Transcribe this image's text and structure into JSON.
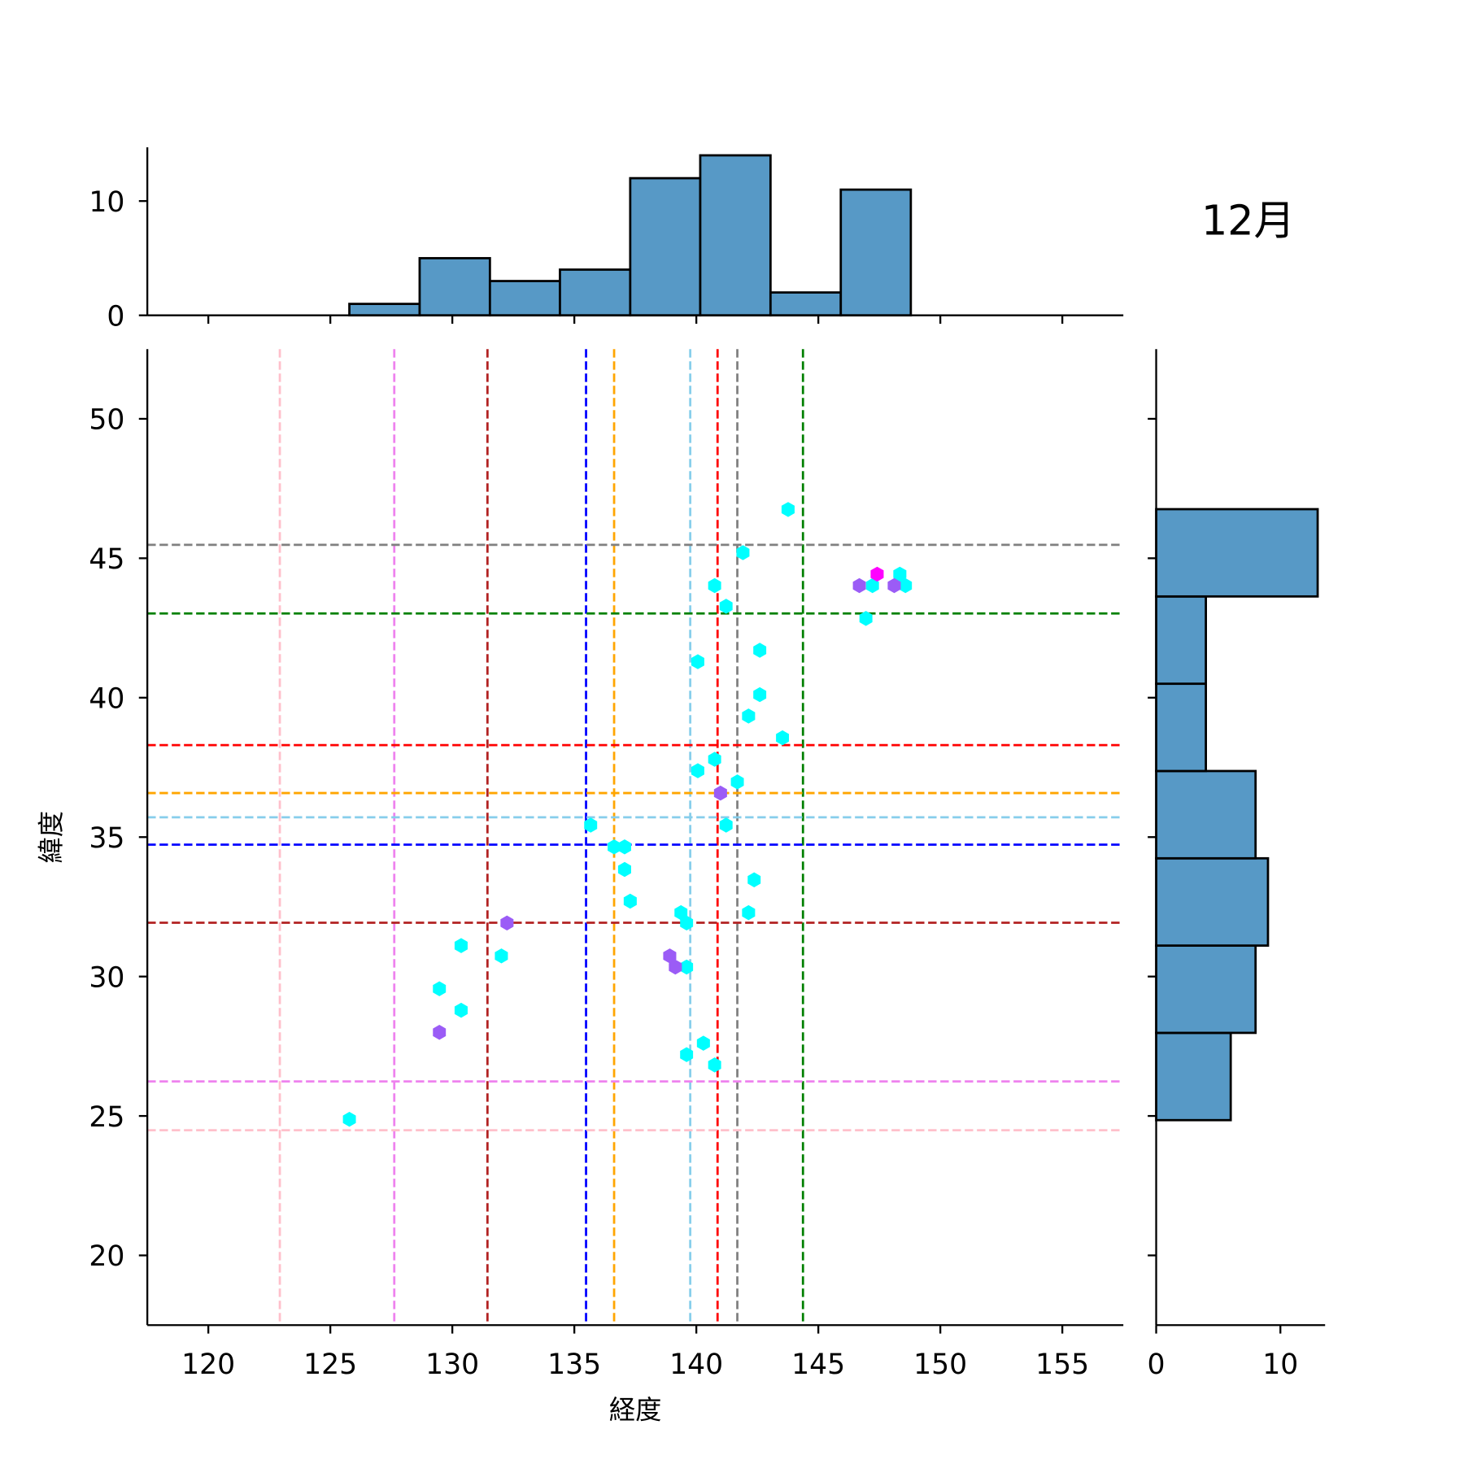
{
  "chart_data": {
    "type": "scatter",
    "title": "12月",
    "xlabel": "経度",
    "ylabel": "緯度",
    "xlim": [
      117.5,
      157.5
    ],
    "ylim": [
      17.5,
      52.5
    ],
    "xticks": [
      120,
      125,
      130,
      135,
      140,
      145,
      150,
      155
    ],
    "yticks": [
      20,
      25,
      30,
      35,
      40,
      45,
      50
    ],
    "grid": false,
    "colors": {
      "bar": "#5799c6",
      "cyan": "#00ffff",
      "purple": "#9b5cf6",
      "magenta": "#ff00ff"
    },
    "vlines": [
      {
        "x": 122.93,
        "color": "#ffc0cb"
      },
      {
        "x": 127.62,
        "color": "#ee82ee"
      },
      {
        "x": 131.44,
        "color": "#b22222"
      },
      {
        "x": 135.48,
        "color": "#0000ff"
      },
      {
        "x": 136.63,
        "color": "#ffa500"
      },
      {
        "x": 139.75,
        "color": "#87ceeb"
      },
      {
        "x": 140.87,
        "color": "#ff0000"
      },
      {
        "x": 141.68,
        "color": "#808080"
      },
      {
        "x": 144.37,
        "color": "#008000"
      }
    ],
    "hlines": [
      {
        "y": 45.48,
        "color": "#808080"
      },
      {
        "y": 43.02,
        "color": "#008000"
      },
      {
        "y": 38.3,
        "color": "#ff0000"
      },
      {
        "y": 36.58,
        "color": "#ffa500"
      },
      {
        "y": 35.71,
        "color": "#87ceeb"
      },
      {
        "y": 34.73,
        "color": "#0000ff"
      },
      {
        "y": 31.93,
        "color": "#b22222"
      },
      {
        "y": 26.24,
        "color": "#ee82ee"
      },
      {
        "y": 24.49,
        "color": "#ffc0cb"
      }
    ],
    "points": [
      {
        "x": 143.76,
        "y": 46.75,
        "c": "cyan"
      },
      {
        "x": 141.91,
        "y": 45.2,
        "c": "cyan"
      },
      {
        "x": 140.75,
        "y": 44.02,
        "c": "cyan"
      },
      {
        "x": 141.22,
        "y": 43.28,
        "c": "cyan"
      },
      {
        "x": 148.34,
        "y": 44.43,
        "c": "cyan"
      },
      {
        "x": 147.22,
        "y": 44.02,
        "c": "cyan"
      },
      {
        "x": 148.57,
        "y": 44.02,
        "c": "cyan"
      },
      {
        "x": 146.95,
        "y": 42.84,
        "c": "cyan"
      },
      {
        "x": 142.6,
        "y": 41.7,
        "c": "cyan"
      },
      {
        "x": 140.06,
        "y": 41.29,
        "c": "cyan"
      },
      {
        "x": 142.6,
        "y": 40.11,
        "c": "cyan"
      },
      {
        "x": 142.14,
        "y": 39.34,
        "c": "cyan"
      },
      {
        "x": 143.53,
        "y": 38.56,
        "c": "cyan"
      },
      {
        "x": 140.75,
        "y": 37.79,
        "c": "cyan"
      },
      {
        "x": 140.06,
        "y": 37.38,
        "c": "cyan"
      },
      {
        "x": 141.68,
        "y": 36.98,
        "c": "cyan"
      },
      {
        "x": 141.22,
        "y": 35.43,
        "c": "cyan"
      },
      {
        "x": 135.67,
        "y": 35.43,
        "c": "cyan"
      },
      {
        "x": 136.63,
        "y": 34.65,
        "c": "cyan"
      },
      {
        "x": 137.06,
        "y": 34.65,
        "c": "cyan"
      },
      {
        "x": 137.06,
        "y": 33.84,
        "c": "cyan"
      },
      {
        "x": 137.29,
        "y": 32.7,
        "c": "cyan"
      },
      {
        "x": 142.37,
        "y": 33.47,
        "c": "cyan"
      },
      {
        "x": 139.37,
        "y": 32.29,
        "c": "cyan"
      },
      {
        "x": 139.6,
        "y": 31.92,
        "c": "cyan"
      },
      {
        "x": 142.14,
        "y": 32.29,
        "c": "cyan"
      },
      {
        "x": 130.36,
        "y": 31.11,
        "c": "cyan"
      },
      {
        "x": 132.01,
        "y": 30.74,
        "c": "cyan"
      },
      {
        "x": 139.6,
        "y": 30.34,
        "c": "cyan"
      },
      {
        "x": 129.47,
        "y": 29.56,
        "c": "cyan"
      },
      {
        "x": 130.36,
        "y": 28.79,
        "c": "cyan"
      },
      {
        "x": 140.29,
        "y": 27.61,
        "c": "cyan"
      },
      {
        "x": 139.6,
        "y": 27.2,
        "c": "cyan"
      },
      {
        "x": 140.75,
        "y": 26.83,
        "c": "cyan"
      },
      {
        "x": 125.78,
        "y": 24.88,
        "c": "cyan"
      },
      {
        "x": 146.68,
        "y": 44.02,
        "c": "purple"
      },
      {
        "x": 148.11,
        "y": 44.02,
        "c": "purple"
      },
      {
        "x": 140.99,
        "y": 36.58,
        "c": "purple"
      },
      {
        "x": 132.24,
        "y": 31.92,
        "c": "purple"
      },
      {
        "x": 138.91,
        "y": 30.74,
        "c": "purple"
      },
      {
        "x": 139.14,
        "y": 30.34,
        "c": "purple"
      },
      {
        "x": 129.47,
        "y": 28.0,
        "c": "purple"
      },
      {
        "x": 147.41,
        "y": 44.43,
        "c": "magenta"
      }
    ],
    "x_hist": {
      "edges": [
        125.78,
        128.66,
        131.54,
        134.41,
        137.29,
        140.16,
        143.04,
        145.92,
        148.79
      ],
      "counts": [
        1,
        5,
        3,
        4,
        12,
        14,
        2,
        11
      ],
      "ylim": [
        0,
        14.7
      ],
      "yticks": [
        0,
        10
      ]
    },
    "y_hist": {
      "edges": [
        24.85,
        27.98,
        31.11,
        34.24,
        37.37,
        40.5,
        43.63,
        46.76
      ],
      "counts": [
        6,
        8,
        9,
        8,
        4,
        4,
        13
      ],
      "xlim": [
        0,
        13.6
      ],
      "xticks": [
        0,
        10
      ]
    }
  }
}
